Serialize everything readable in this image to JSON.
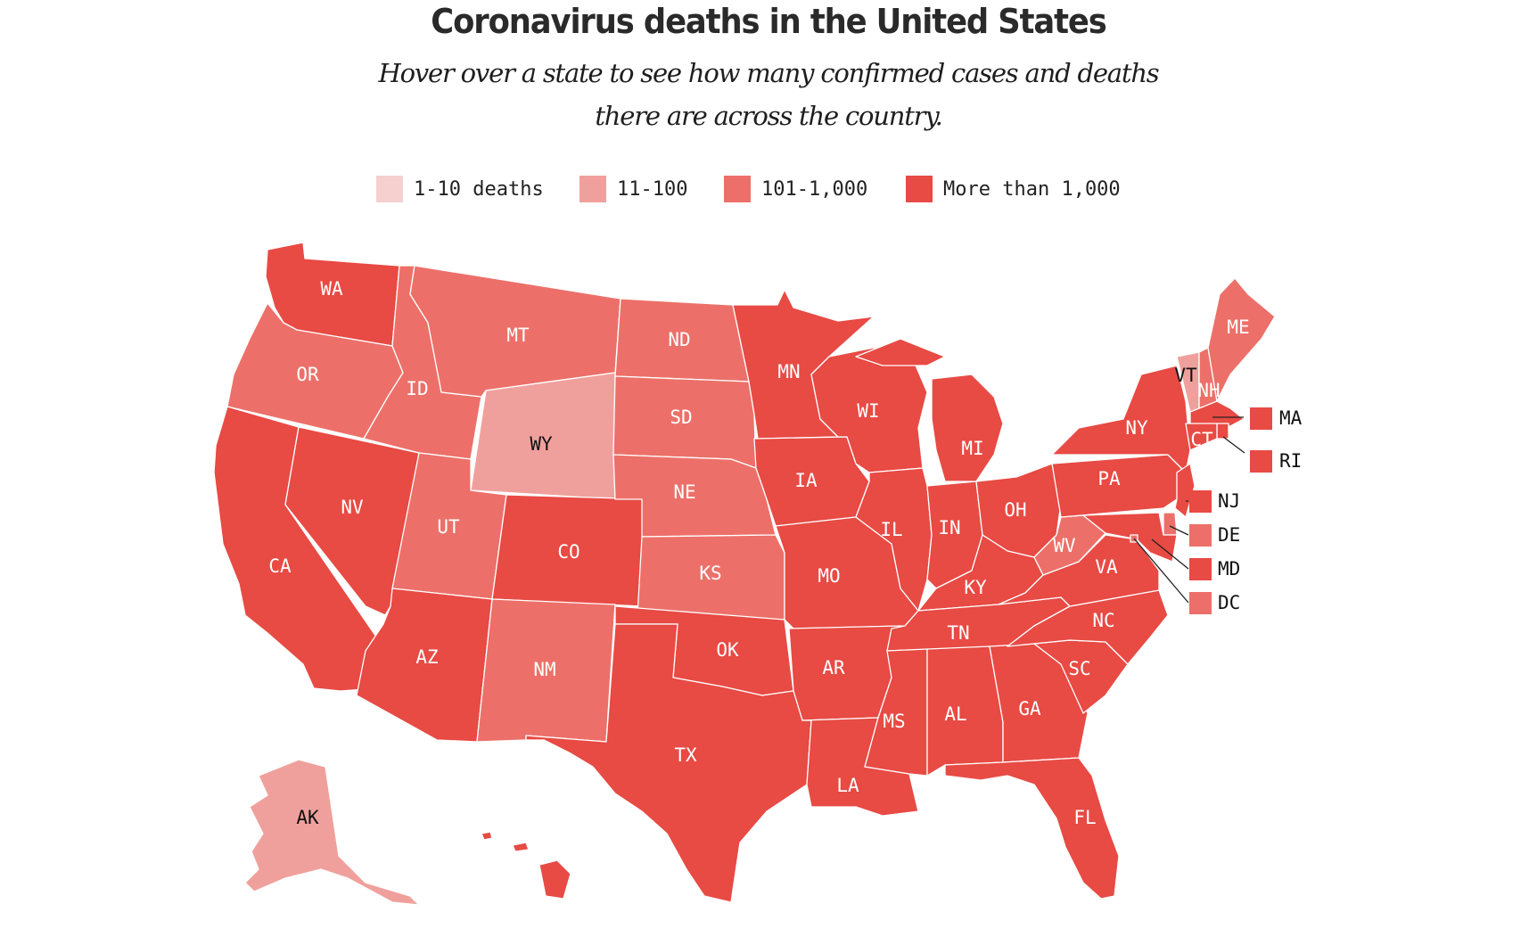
{
  "title": "Coronavirus deaths in the United States",
  "subtitle": "Hover over a state to see how many confirmed cases and deaths there are across the country.",
  "colors": {
    "tier1": "#f6cfcf",
    "tier2": "#f0a09c",
    "tier3": "#ec7069",
    "tier4": "#e84a44"
  },
  "legend": [
    {
      "label": "1-10 deaths",
      "color": "#f6cfcf"
    },
    {
      "label": "11-100",
      "color": "#f0a09c"
    },
    {
      "label": "101-1,000",
      "color": "#ec7069"
    },
    {
      "label": "More than 1,000",
      "color": "#e84a44"
    }
  ],
  "states": {
    "WA": {
      "label": "WA",
      "tier": 4
    },
    "OR": {
      "label": "OR",
      "tier": 3
    },
    "CA": {
      "label": "CA",
      "tier": 4
    },
    "NV": {
      "label": "NV",
      "tier": 4
    },
    "ID": {
      "label": "ID",
      "tier": 3
    },
    "MT": {
      "label": "MT",
      "tier": 3
    },
    "WY": {
      "label": "WY",
      "tier": 2
    },
    "UT": {
      "label": "UT",
      "tier": 3
    },
    "AZ": {
      "label": "AZ",
      "tier": 4
    },
    "CO": {
      "label": "CO",
      "tier": 4
    },
    "NM": {
      "label": "NM",
      "tier": 3
    },
    "ND": {
      "label": "ND",
      "tier": 3
    },
    "SD": {
      "label": "SD",
      "tier": 3
    },
    "NE": {
      "label": "NE",
      "tier": 3
    },
    "KS": {
      "label": "KS",
      "tier": 3
    },
    "OK": {
      "label": "OK",
      "tier": 4
    },
    "TX": {
      "label": "TX",
      "tier": 4
    },
    "MN": {
      "label": "MN",
      "tier": 4
    },
    "IA": {
      "label": "IA",
      "tier": 4
    },
    "MO": {
      "label": "MO",
      "tier": 4
    },
    "AR": {
      "label": "AR",
      "tier": 4
    },
    "LA": {
      "label": "LA",
      "tier": 4
    },
    "WI": {
      "label": "WI",
      "tier": 4
    },
    "IL": {
      "label": "IL",
      "tier": 4
    },
    "MI": {
      "label": "MI",
      "tier": 4
    },
    "IN": {
      "label": "IN",
      "tier": 4
    },
    "OH": {
      "label": "OH",
      "tier": 4
    },
    "KY": {
      "label": "KY",
      "tier": 4
    },
    "TN": {
      "label": "TN",
      "tier": 4
    },
    "MS": {
      "label": "MS",
      "tier": 4
    },
    "AL": {
      "label": "AL",
      "tier": 4
    },
    "GA": {
      "label": "GA",
      "tier": 4
    },
    "FL": {
      "label": "FL",
      "tier": 4
    },
    "SC": {
      "label": "SC",
      "tier": 4
    },
    "NC": {
      "label": "NC",
      "tier": 4
    },
    "VA": {
      "label": "VA",
      "tier": 4
    },
    "WV": {
      "label": "WV",
      "tier": 3
    },
    "PA": {
      "label": "PA",
      "tier": 4
    },
    "NY": {
      "label": "NY",
      "tier": 4
    },
    "VT": {
      "label": "VT",
      "tier": 2
    },
    "NH": {
      "label": "NH",
      "tier": 3
    },
    "ME": {
      "label": "ME",
      "tier": 3
    },
    "MA": {
      "label": "MA",
      "tier": 4
    },
    "RI": {
      "label": "RI",
      "tier": 4
    },
    "CT": {
      "label": "CT",
      "tier": 4
    },
    "NJ": {
      "label": "NJ",
      "tier": 4
    },
    "DE": {
      "label": "DE",
      "tier": 3
    },
    "MD": {
      "label": "MD",
      "tier": 4
    },
    "DC": {
      "label": "DC",
      "tier": 3
    },
    "AK": {
      "label": "AK",
      "tier": 2
    },
    "HI": {
      "label": "",
      "tier": 4
    }
  }
}
